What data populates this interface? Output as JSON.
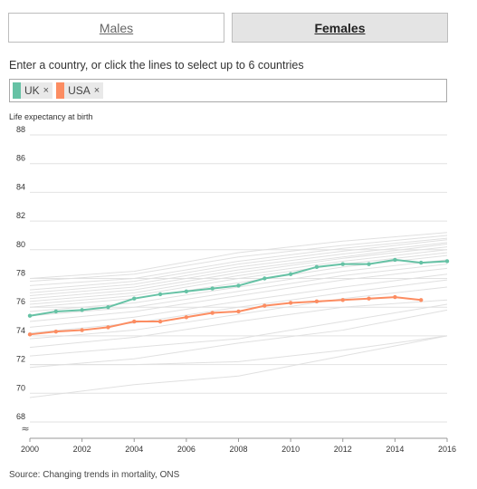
{
  "tabs": {
    "males": "Males",
    "females": "Females"
  },
  "instruction": "Enter a country, or click the lines to select up to 6 countries",
  "selected": [
    {
      "label": "UK",
      "color": "#66c2a5",
      "remove": "×"
    },
    {
      "label": "USA",
      "color": "#fc8d62",
      "remove": "×"
    }
  ],
  "source": "Source: Changing trends in mortality, ONS",
  "chart_data": {
    "type": "line",
    "ylabel": "Life expectancy at birth",
    "xlabel": "",
    "xlim": [
      2000,
      2016
    ],
    "ylim": [
      67.5,
      88
    ],
    "x_ticks": [
      2000,
      2002,
      2004,
      2006,
      2008,
      2010,
      2012,
      2014,
      2016
    ],
    "y_ticks": [
      68,
      70,
      72,
      74,
      76,
      78,
      80,
      82,
      84,
      86,
      88
    ],
    "axis_break": true,
    "grid": true,
    "series": [
      {
        "name": "UK",
        "color": "#66c2a5",
        "x": [
          2000,
          2001,
          2002,
          2003,
          2004,
          2005,
          2006,
          2007,
          2008,
          2009,
          2010,
          2011,
          2012,
          2013,
          2014,
          2015,
          2016
        ],
        "y": [
          75.4,
          75.7,
          75.8,
          76.0,
          76.6,
          76.9,
          77.1,
          77.3,
          77.5,
          78.0,
          78.3,
          78.8,
          79.0,
          79.0,
          79.3,
          79.1,
          79.2
        ]
      },
      {
        "name": "USA",
        "color": "#fc8d62",
        "x": [
          2000,
          2001,
          2002,
          2003,
          2004,
          2005,
          2006,
          2007,
          2008,
          2009,
          2010,
          2011,
          2012,
          2013,
          2014,
          2015
        ],
        "y": [
          74.1,
          74.3,
          74.4,
          74.6,
          75.0,
          75.0,
          75.3,
          75.6,
          75.7,
          76.1,
          76.3,
          76.4,
          76.5,
          76.6,
          76.7,
          76.5
        ]
      }
    ],
    "background_series": [
      {
        "x": [
          2000,
          2004,
          2008,
          2012,
          2016
        ],
        "y": [
          78.0,
          78.5,
          79.8,
          80.6,
          81.2
        ]
      },
      {
        "x": [
          2000,
          2004,
          2008,
          2012,
          2016
        ],
        "y": [
          77.8,
          78.3,
          79.5,
          80.3,
          81.0
        ]
      },
      {
        "x": [
          2000,
          2004,
          2008,
          2012,
          2016
        ],
        "y": [
          77.5,
          78.0,
          79.2,
          80.1,
          80.8
        ]
      },
      {
        "x": [
          2000,
          2004,
          2008,
          2012,
          2016
        ],
        "y": [
          77.2,
          77.8,
          79.0,
          79.9,
          80.7
        ]
      },
      {
        "x": [
          2000,
          2004,
          2008,
          2012,
          2016
        ],
        "y": [
          77.0,
          77.6,
          78.8,
          79.7,
          80.5
        ]
      },
      {
        "x": [
          2000,
          2004,
          2008,
          2012,
          2016
        ],
        "y": [
          76.8,
          77.4,
          78.6,
          79.5,
          80.4
        ]
      },
      {
        "x": [
          2000,
          2004,
          2008,
          2012,
          2016
        ],
        "y": [
          76.6,
          77.2,
          78.4,
          79.4,
          80.2
        ]
      },
      {
        "x": [
          2000,
          2004,
          2008,
          2012,
          2016
        ],
        "y": [
          76.4,
          77.0,
          78.2,
          79.2,
          80.0
        ]
      },
      {
        "x": [
          2000,
          2004,
          2008,
          2012,
          2016
        ],
        "y": [
          76.2,
          76.8,
          78.0,
          79.0,
          79.8
        ]
      },
      {
        "x": [
          2000,
          2004,
          2008,
          2012,
          2016
        ],
        "y": [
          76.0,
          76.6,
          77.7,
          78.8,
          79.6
        ]
      },
      {
        "x": [
          2000,
          2004,
          2008,
          2012,
          2016
        ],
        "y": [
          75.7,
          76.3,
          77.4,
          78.5,
          79.3
        ]
      },
      {
        "x": [
          2000,
          2004,
          2008,
          2012,
          2016
        ],
        "y": [
          75.4,
          76.0,
          77.1,
          78.2,
          79.0
        ]
      },
      {
        "x": [
          2000,
          2004,
          2008,
          2012,
          2016
        ],
        "y": [
          75.0,
          75.7,
          76.8,
          77.9,
          78.7
        ]
      },
      {
        "x": [
          2000,
          2004,
          2008,
          2012,
          2016
        ],
        "y": [
          74.6,
          75.3,
          76.4,
          77.4,
          78.3
        ]
      },
      {
        "x": [
          2000,
          2004,
          2008,
          2012,
          2016
        ],
        "y": [
          74.2,
          74.9,
          76.0,
          77.0,
          77.9
        ]
      },
      {
        "x": [
          2000,
          2004,
          2008,
          2012,
          2016
        ],
        "y": [
          73.8,
          74.4,
          75.5,
          76.6,
          77.4
        ]
      },
      {
        "x": [
          2000,
          2004,
          2008,
          2012,
          2016
        ],
        "y": [
          73.2,
          73.9,
          75.0,
          76.0,
          76.5
        ]
      },
      {
        "x": [
          2000,
          2004,
          2008,
          2012,
          2016
        ],
        "y": [
          72.6,
          73.2,
          73.8,
          75.0,
          76.2
        ]
      },
      {
        "x": [
          2000,
          2004,
          2008,
          2012,
          2016
        ],
        "y": [
          71.8,
          72.4,
          73.5,
          74.4,
          75.8
        ]
      },
      {
        "x": [
          2000,
          2004,
          2008,
          2012,
          2016
        ],
        "y": [
          72.0,
          72.0,
          72.2,
          73.0,
          74.0
        ]
      },
      {
        "x": [
          2000,
          2004,
          2008,
          2012,
          2016
        ],
        "y": [
          69.7,
          70.6,
          71.2,
          72.6,
          74.0
        ]
      }
    ]
  }
}
